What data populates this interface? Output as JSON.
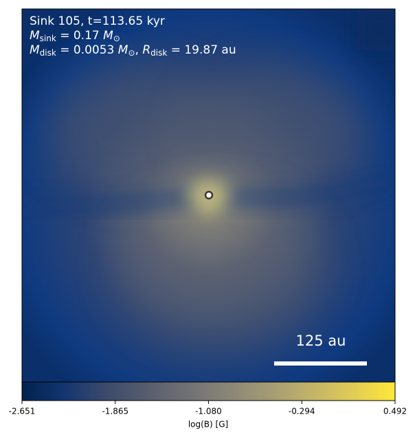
{
  "chart_data": {
    "type": "heatmap",
    "annotation_lines": [
      [
        {
          "text": "Sink 105, t=113.65 kyr"
        }
      ],
      [
        {
          "text": "M",
          "italic": true
        },
        {
          "text": "sink",
          "sub": true
        },
        {
          "text": " = 0.17 "
        },
        {
          "text": "M",
          "italic": true
        },
        {
          "text": "⊙",
          "sub": true
        }
      ],
      [
        {
          "text": "M",
          "italic": true
        },
        {
          "text": "disk",
          "sub": true
        },
        {
          "text": " = 0.0053 "
        },
        {
          "text": "M",
          "italic": true
        },
        {
          "text": "⊙",
          "sub": true
        },
        {
          "text": ", "
        },
        {
          "text": "R",
          "italic": true
        },
        {
          "text": "disk",
          "sub": true
        },
        {
          "text": " = 19.87 au"
        }
      ]
    ],
    "scale_bar_label": "125 au",
    "colorbar": {
      "label": "log(B) [G]",
      "clim": [
        -2.651,
        0.492
      ],
      "ticks": [
        -2.651,
        -1.865,
        {
          "value": -1.08,
          "label": "-1.080"
        },
        -0.294,
        0.492
      ],
      "colormap": [
        "#00224e",
        "#123570",
        "#3b496c",
        "#575d6d",
        "#707173",
        "#8a8678",
        "#a59c74",
        "#c3b369",
        "#e1cc55",
        "#fee838"
      ]
    }
  }
}
